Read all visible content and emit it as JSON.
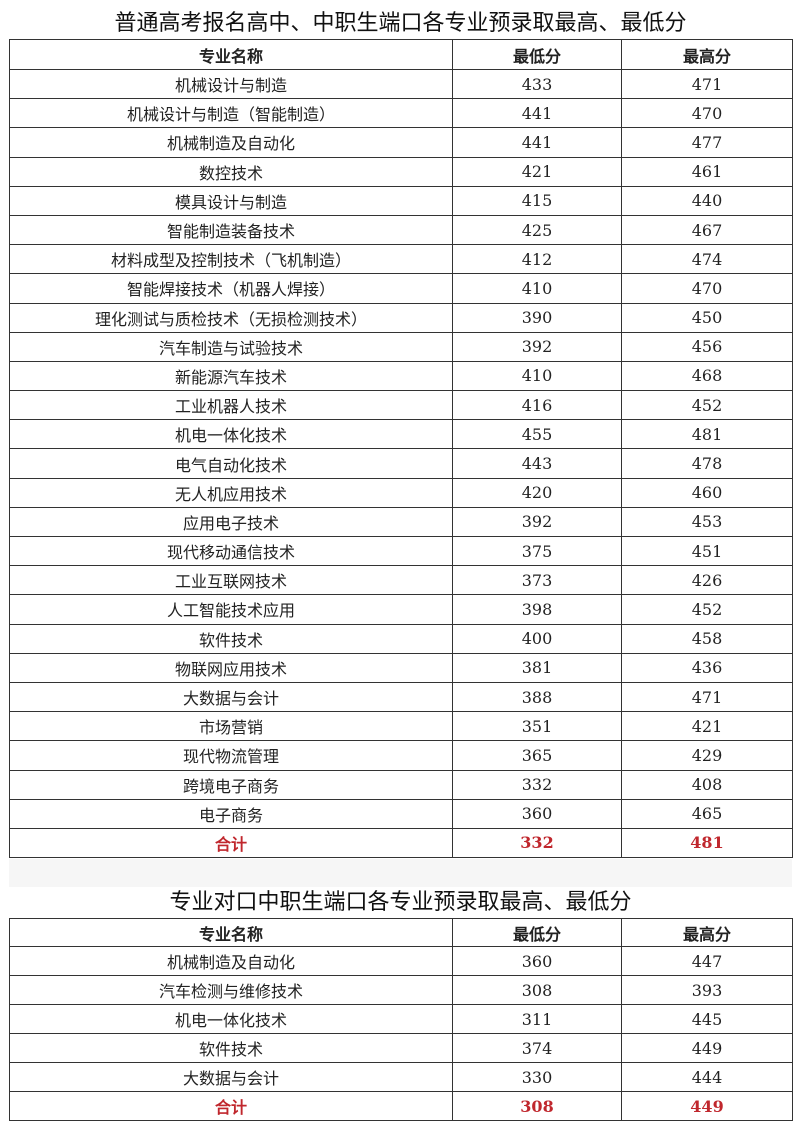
{
  "table1": {
    "title": "普通高考报名高中、中职生端口各专业预录取最高、最低分",
    "headers": [
      "专业名称",
      "最低分",
      "最高分"
    ],
    "rows": [
      [
        "机械设计与制造",
        "433",
        "471"
      ],
      [
        "机械设计与制造（智能制造）",
        "441",
        "470"
      ],
      [
        "机械制造及自动化",
        "441",
        "477"
      ],
      [
        "数控技术",
        "421",
        "461"
      ],
      [
        "模具设计与制造",
        "415",
        "440"
      ],
      [
        "智能制造装备技术",
        "425",
        "467"
      ],
      [
        "材料成型及控制技术（飞机制造）",
        "412",
        "474"
      ],
      [
        "智能焊接技术（机器人焊接）",
        "410",
        "470"
      ],
      [
        "理化测试与质检技术（无损检测技术）",
        "390",
        "450"
      ],
      [
        "汽车制造与试验技术",
        "392",
        "456"
      ],
      [
        "新能源汽车技术",
        "410",
        "468"
      ],
      [
        "工业机器人技术",
        "416",
        "452"
      ],
      [
        "机电一体化技术",
        "455",
        "481"
      ],
      [
        "电气自动化技术",
        "443",
        "478"
      ],
      [
        "无人机应用技术",
        "420",
        "460"
      ],
      [
        "应用电子技术",
        "392",
        "453"
      ],
      [
        "现代移动通信技术",
        "375",
        "451"
      ],
      [
        "工业互联网技术",
        "373",
        "426"
      ],
      [
        "人工智能技术应用",
        "398",
        "452"
      ],
      [
        "软件技术",
        "400",
        "458"
      ],
      [
        "物联网应用技术",
        "381",
        "436"
      ],
      [
        "大数据与会计",
        "388",
        "471"
      ],
      [
        "市场营销",
        "351",
        "421"
      ],
      [
        "现代物流管理",
        "365",
        "429"
      ],
      [
        "跨境电子商务",
        "332",
        "408"
      ],
      [
        "电子商务",
        "360",
        "465"
      ]
    ],
    "total": [
      "合计",
      "332",
      "481"
    ]
  },
  "table2": {
    "title": "专业对口中职生端口各专业预录取最高、最低分",
    "headers": [
      "专业名称",
      "最低分",
      "最高分"
    ],
    "rows": [
      [
        "机械制造及自动化",
        "360",
        "447"
      ],
      [
        "汽车检测与维修技术",
        "308",
        "393"
      ],
      [
        "机电一体化技术",
        "311",
        "445"
      ],
      [
        "软件技术",
        "374",
        "449"
      ],
      [
        "大数据与会计",
        "330",
        "444"
      ]
    ],
    "total": [
      "合计",
      "308",
      "449"
    ]
  },
  "colors": {
    "total_text": "#c0272d",
    "border": "#333333"
  }
}
